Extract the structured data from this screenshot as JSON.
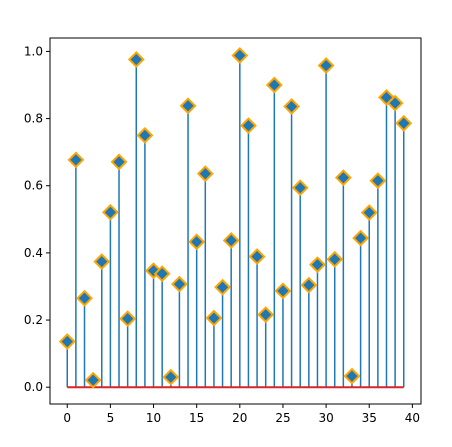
{
  "chart_data": {
    "type": "stem",
    "title": "",
    "xlabel": "",
    "ylabel": "",
    "x": [
      0,
      1,
      2,
      3,
      4,
      5,
      6,
      7,
      8,
      9,
      10,
      11,
      12,
      13,
      14,
      15,
      16,
      17,
      18,
      19,
      20,
      21,
      22,
      23,
      24,
      25,
      26,
      27,
      28,
      29,
      30,
      31,
      32,
      33,
      34,
      35,
      36,
      37,
      38,
      39
    ],
    "values": [
      0.136,
      0.677,
      0.265,
      0.021,
      0.374,
      0.521,
      0.671,
      0.204,
      0.976,
      0.75,
      0.347,
      0.338,
      0.03,
      0.307,
      0.838,
      0.433,
      0.636,
      0.206,
      0.298,
      0.437,
      0.988,
      0.779,
      0.389,
      0.216,
      0.9,
      0.287,
      0.836,
      0.594,
      0.304,
      0.365,
      0.958,
      0.381,
      0.624,
      0.033,
      0.444,
      0.52,
      0.615,
      0.863,
      0.846,
      0.786
    ],
    "xlim": [
      -2,
      41
    ],
    "ylim": [
      -0.05,
      1.04
    ],
    "xticks": [
      0,
      5,
      10,
      15,
      20,
      25,
      30,
      35,
      40
    ],
    "yticks": [
      0.0,
      0.2,
      0.4,
      0.6,
      0.8,
      1.0
    ],
    "baseline": 0,
    "grid": false,
    "legend": "none",
    "colors": {
      "stem": "#1f77b4",
      "marker_face": "#1f77b4",
      "marker_edge": "#ffa500",
      "baseline": "#d62728",
      "axes": "#000000"
    }
  }
}
